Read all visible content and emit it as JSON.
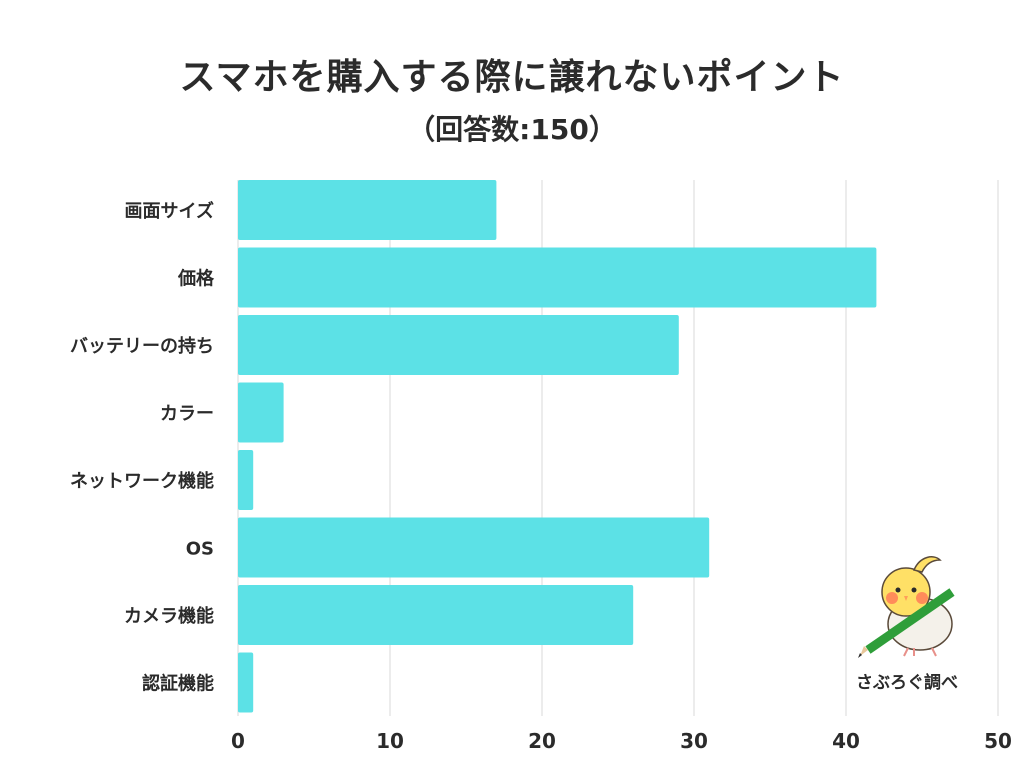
{
  "title": "スマホを購入する際に譲れないポイント",
  "subtitle": "（回答数:150）",
  "credit": "さぶろぐ調べ",
  "colors": {
    "bar": "#5ce1e6",
    "grid": "#d9d9d9",
    "text": "#2b2b2b"
  },
  "chart_data": {
    "type": "bar",
    "orientation": "horizontal",
    "categories": [
      "画面サイズ",
      "価格",
      "バッテリーの持ち",
      "カラー",
      "ネットワーク機能",
      "OS",
      "カメラ機能",
      "認証機能"
    ],
    "values": [
      17,
      42,
      29,
      3,
      1,
      31,
      26,
      1
    ],
    "xlim": [
      0,
      50
    ],
    "xticks": [
      0,
      10,
      20,
      30,
      40,
      50
    ],
    "grid": true
  }
}
